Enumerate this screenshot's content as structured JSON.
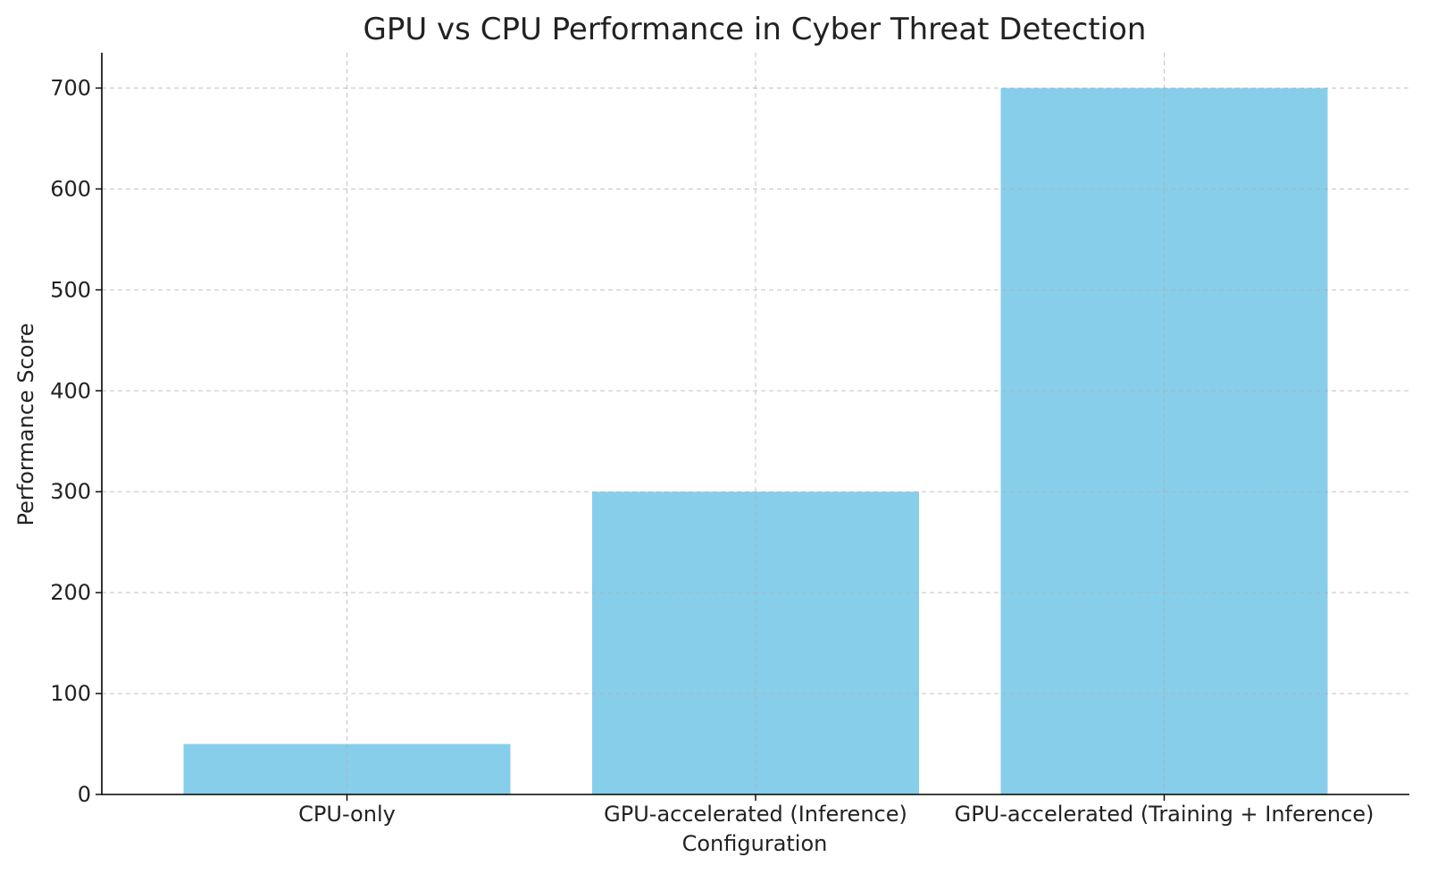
{
  "chart_data": {
    "type": "bar",
    "title": "GPU vs CPU Performance in Cyber Threat Detection",
    "xlabel": "Configuration",
    "ylabel": "Performance Score",
    "categories": [
      "CPU-only",
      "GPU-accelerated (Inference)",
      "GPU-accelerated (Training + Inference)"
    ],
    "values": [
      50,
      300,
      700
    ],
    "ylim": [
      0,
      735
    ],
    "yticks": [
      0,
      100,
      200,
      300,
      400,
      500,
      600,
      700
    ],
    "ytick_labels": [
      "0",
      "100",
      "200",
      "300",
      "400",
      "500",
      "600",
      "700"
    ],
    "grid": true,
    "bar_color": "#87CEEB"
  }
}
